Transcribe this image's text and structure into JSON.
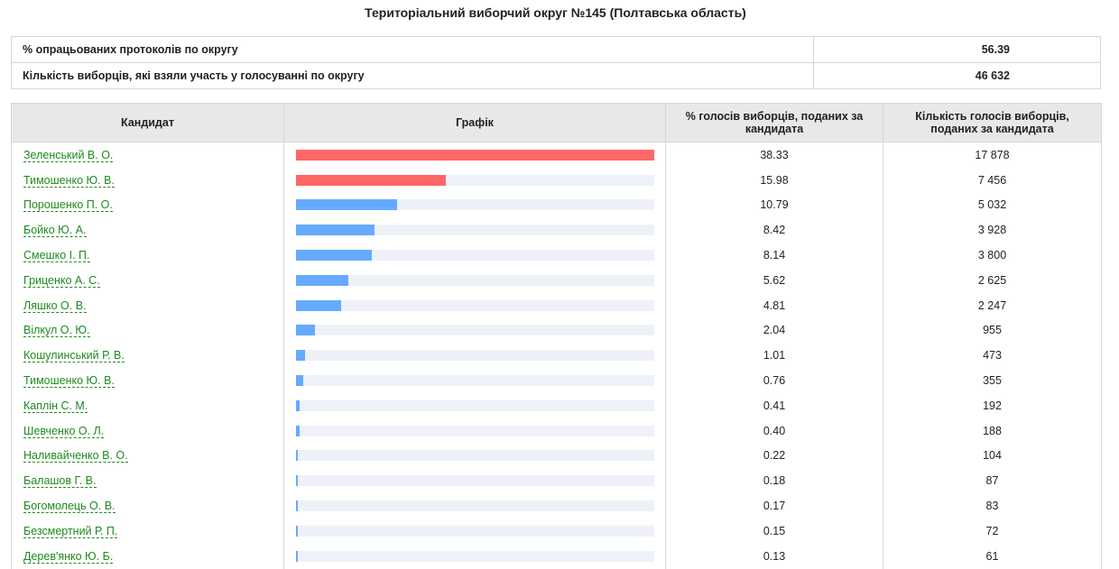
{
  "page": {
    "title": "Територіальний виборчий округ №145 (Полтавська область)"
  },
  "summary": [
    {
      "label": "% опрацьованих протоколів по округу",
      "value": "56.39"
    },
    {
      "label": "Кількість виборців, які взяли участь у голосуванні по округу",
      "value": "46 632"
    }
  ],
  "headers": {
    "candidate": "Кандидат",
    "chart": "Графік",
    "percent": "% голосів виборців, поданих за кандидата",
    "votes": "Кількість голосів виборців, поданих за кандидата"
  },
  "colors": {
    "top_two_bar": "#ff6666",
    "other_bar": "#66aaff",
    "track": "#eef1f8",
    "link": "#1e8a1e"
  },
  "candidates": [
    {
      "name": "Зеленський В. О.",
      "percent": "38.33",
      "votes": "17 878",
      "pct_value": 38.33,
      "highlight": true
    },
    {
      "name": "Тимошенко Ю. В.",
      "percent": "15.98",
      "votes": "7 456",
      "pct_value": 15.98,
      "highlight": true
    },
    {
      "name": "Порошенко П. О.",
      "percent": "10.79",
      "votes": "5 032",
      "pct_value": 10.79,
      "highlight": false
    },
    {
      "name": "Бойко Ю. А.",
      "percent": "8.42",
      "votes": "3 928",
      "pct_value": 8.42,
      "highlight": false
    },
    {
      "name": "Смешко І. П.",
      "percent": "8.14",
      "votes": "3 800",
      "pct_value": 8.14,
      "highlight": false
    },
    {
      "name": "Гриценко А. С.",
      "percent": "5.62",
      "votes": "2 625",
      "pct_value": 5.62,
      "highlight": false
    },
    {
      "name": "Ляшко О. В.",
      "percent": "4.81",
      "votes": "2 247",
      "pct_value": 4.81,
      "highlight": false
    },
    {
      "name": "Вілкул О. Ю.",
      "percent": "2.04",
      "votes": "955",
      "pct_value": 2.04,
      "highlight": false
    },
    {
      "name": "Кошулинський Р. В.",
      "percent": "1.01",
      "votes": "473",
      "pct_value": 1.01,
      "highlight": false
    },
    {
      "name": "Тимошенко Ю. В.",
      "percent": "0.76",
      "votes": "355",
      "pct_value": 0.76,
      "highlight": false
    },
    {
      "name": "Каплін С. М.",
      "percent": "0.41",
      "votes": "192",
      "pct_value": 0.41,
      "highlight": false
    },
    {
      "name": "Шевченко О. Л.",
      "percent": "0.40",
      "votes": "188",
      "pct_value": 0.4,
      "highlight": false
    },
    {
      "name": "Наливайченко В. О.",
      "percent": "0.22",
      "votes": "104",
      "pct_value": 0.22,
      "highlight": false
    },
    {
      "name": "Балашов Г. В.",
      "percent": "0.18",
      "votes": "87",
      "pct_value": 0.18,
      "highlight": false
    },
    {
      "name": "Богомолець О. В.",
      "percent": "0.17",
      "votes": "83",
      "pct_value": 0.17,
      "highlight": false
    },
    {
      "name": "Безсмертний Р. П.",
      "percent": "0.15",
      "votes": "72",
      "pct_value": 0.15,
      "highlight": false
    },
    {
      "name": "Дерев'янко Ю. Б.",
      "percent": "0.13",
      "votes": "61",
      "pct_value": 0.13,
      "highlight": false
    }
  ]
}
